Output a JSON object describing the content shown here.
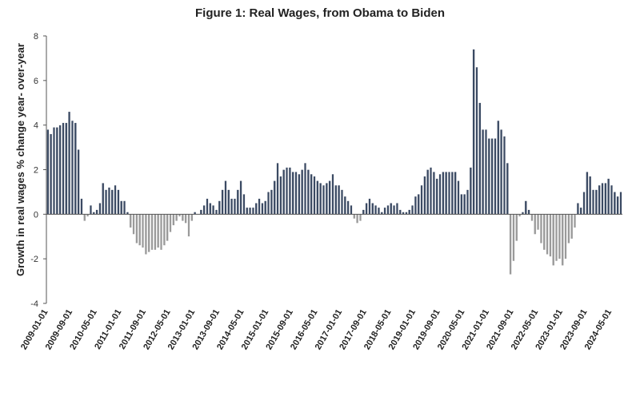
{
  "chart_data": {
    "type": "bar",
    "title": "Figure 1: Real Wages, from Obama to Biden",
    "ylabel": "Growth in real wages % change year- over-year",
    "xlabel": "",
    "ylim": [
      -4,
      8
    ],
    "yticks": [
      -4,
      -2,
      0,
      2,
      4,
      6,
      8
    ],
    "grid": false,
    "colors": {
      "above_zero": "#3b4a63",
      "below_zero": "#9a9a9a"
    },
    "start_month": "2009-01",
    "x_tick_labels": [
      "2009-01-01",
      "2009-09-01",
      "2010-05-01",
      "2011-01-01",
      "2011-09-01",
      "2012-05-01",
      "2013-01-01",
      "2013-09-01",
      "2014-05-01",
      "2015-01-01",
      "2015-09-01",
      "2016-05-01",
      "2017-01-01",
      "2017-09-01",
      "2018-05-01",
      "2019-01-01",
      "2019-09-01",
      "2020-05-01",
      "2021-01-01",
      "2021-09-01",
      "2022-05-01",
      "2023-01-01",
      "2023-09-01",
      "2024-05-01"
    ],
    "series": [
      {
        "values": [
          3.8,
          3.6,
          3.9,
          3.9,
          4.0,
          4.1,
          4.1,
          4.6,
          4.2,
          4.1,
          2.9,
          0.7,
          -0.3,
          -0.1,
          0.4,
          0.1,
          0.2,
          0.5,
          1.4,
          1.1,
          1.2,
          1.1,
          1.3,
          1.1,
          0.6,
          0.6,
          0.1,
          -0.6,
          -0.9,
          -1.3,
          -1.4,
          -1.5,
          -1.8,
          -1.7,
          -1.6,
          -1.6,
          -1.5,
          -1.6,
          -1.4,
          -1.2,
          -0.8,
          -0.5,
          -0.3,
          -0.1,
          -0.3,
          -0.4,
          -1.0,
          -0.3,
          0.1,
          0.0,
          0.2,
          0.4,
          0.7,
          0.5,
          0.4,
          0.2,
          0.6,
          1.1,
          1.5,
          1.1,
          0.7,
          0.7,
          1.1,
          1.5,
          0.9,
          0.3,
          0.3,
          0.3,
          0.5,
          0.7,
          0.5,
          0.6,
          1.0,
          1.1,
          1.5,
          2.3,
          1.7,
          2.0,
          2.1,
          2.1,
          1.9,
          1.9,
          1.8,
          2.0,
          2.3,
          2.0,
          1.8,
          1.7,
          1.5,
          1.4,
          1.3,
          1.4,
          1.5,
          1.8,
          1.3,
          1.3,
          1.1,
          0.8,
          0.6,
          0.4,
          -0.2,
          -0.4,
          -0.3,
          0.2,
          0.5,
          0.7,
          0.5,
          0.4,
          0.3,
          0.1,
          0.3,
          0.4,
          0.5,
          0.4,
          0.5,
          0.2,
          0.1,
          0.1,
          0.2,
          0.4,
          0.8,
          0.9,
          1.3,
          1.7,
          2.0,
          2.1,
          1.9,
          1.6,
          1.8,
          1.9,
          1.9,
          1.9,
          1.9,
          1.9,
          1.5,
          0.9,
          0.9,
          1.1,
          2.1,
          7.4,
          6.6,
          5.0,
          3.8,
          3.8,
          3.4,
          3.4,
          3.4,
          4.2,
          3.8,
          3.5,
          2.3,
          -2.7,
          -2.1,
          -1.2,
          -0.1,
          0.1,
          0.6,
          0.2,
          -0.3,
          -0.9,
          -0.7,
          -1.3,
          -1.6,
          -1.8,
          -1.9,
          -2.3,
          -2.1,
          -2.0,
          -2.3,
          -2.0,
          -1.3,
          -1.1,
          -0.6,
          0.5,
          0.3,
          1.0,
          1.9,
          1.7,
          1.1,
          1.1,
          1.3,
          1.4,
          1.4,
          1.6,
          1.3,
          1.0,
          0.8,
          1.0
        ]
      }
    ]
  }
}
